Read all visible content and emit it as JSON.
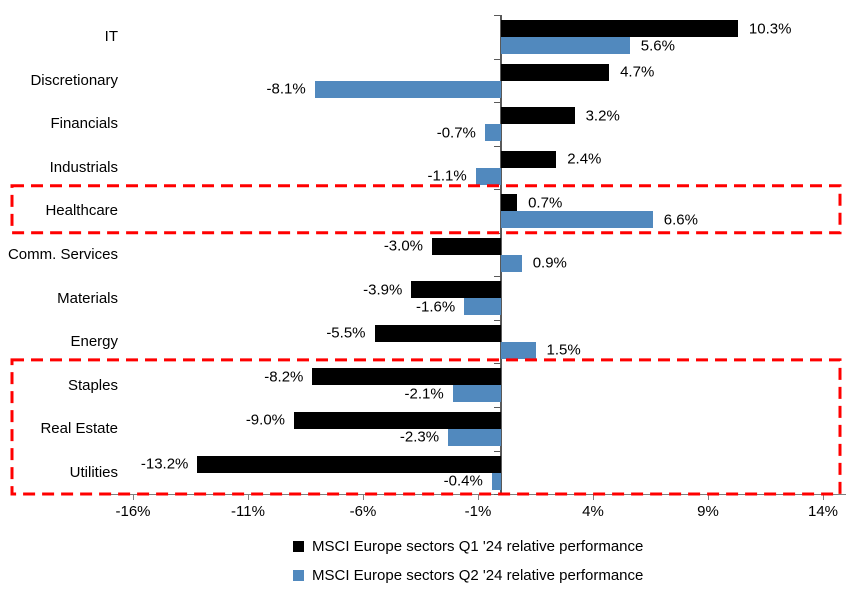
{
  "chart_data": {
    "type": "bar",
    "orientation": "horizontal",
    "categories": [
      "IT",
      "Discretionary",
      "Financials",
      "Industrials",
      "Healthcare",
      "Comm. Services",
      "Materials",
      "Energy",
      "Staples",
      "Real Estate",
      "Utilities"
    ],
    "series": [
      {
        "name": "MSCI Europe sectors Q1 '24 relative performance",
        "color": "#000000",
        "values": [
          10.3,
          4.7,
          3.2,
          2.4,
          0.7,
          -3.0,
          -3.9,
          -5.5,
          -8.2,
          -9.0,
          -13.2
        ],
        "labels": [
          "10.3%",
          "4.7%",
          "3.2%",
          "2.4%",
          "0.7%",
          "-3.0%",
          "-3.9%",
          "-5.5%",
          "-8.2%",
          "-9.0%",
          "-13.2%"
        ]
      },
      {
        "name": "MSCI Europe sectors Q2 '24 relative performance",
        "color": "#5189BE",
        "values": [
          5.6,
          -8.1,
          -0.7,
          -1.1,
          6.6,
          0.9,
          -1.6,
          1.5,
          -2.1,
          -2.3,
          -0.4
        ],
        "labels": [
          "5.6%",
          "-8.1%",
          "-0.7%",
          "-1.1%",
          "6.6%",
          "0.9%",
          "-1.6%",
          "1.5%",
          "-2.1%",
          "-2.3%",
          "-0.4%"
        ]
      }
    ],
    "x_axis": {
      "tick_labels": [
        "-16%",
        "-11%",
        "-6%",
        "-1%",
        "4%",
        "9%",
        "14%"
      ],
      "tick_values": [
        -16,
        -11,
        -6,
        -1,
        4,
        9,
        14
      ],
      "range": [
        -17,
        15
      ],
      "unit": "%"
    },
    "grid": false,
    "legend_position": "bottom",
    "annotations": [
      {
        "type": "dashed-box",
        "color": "#FF0000",
        "name": "highlight-healthcare",
        "row_start": "Healthcare",
        "row_end": "Healthcare"
      },
      {
        "type": "dashed-box",
        "color": "#FF0000",
        "name": "highlight-defensive-sectors",
        "row_start": "Staples",
        "row_end": "Utilities"
      }
    ]
  }
}
